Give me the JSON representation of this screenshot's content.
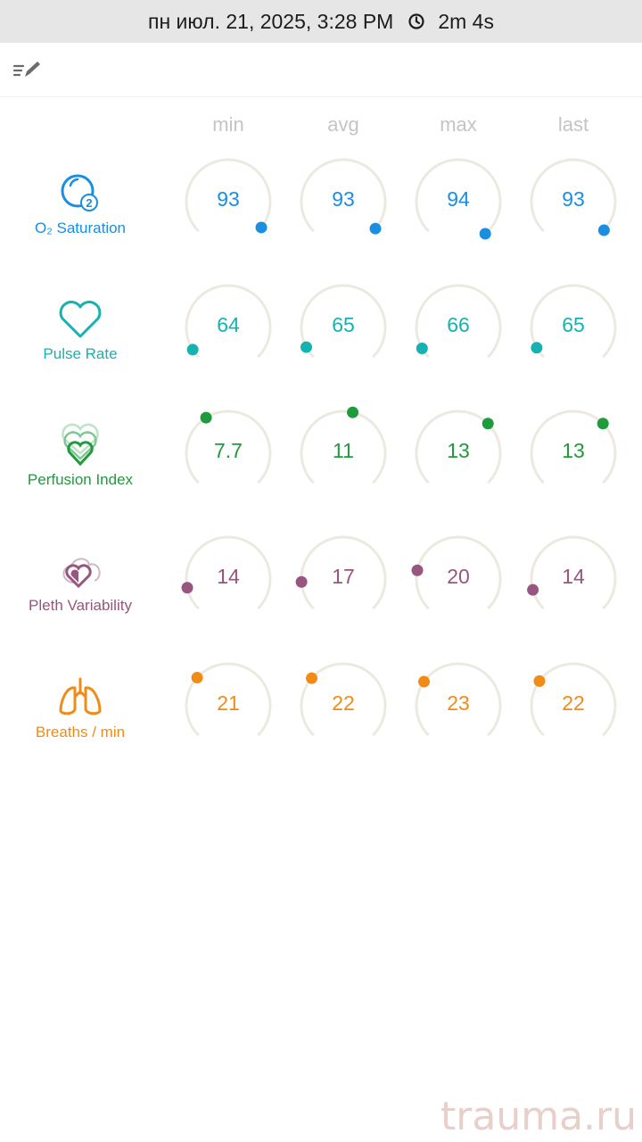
{
  "status": {
    "datetime": "пн июл. 21, 2025, 3:28 PM",
    "duration": "2m 4s"
  },
  "columns": [
    "min",
    "avg",
    "max",
    "last"
  ],
  "rows": [
    {
      "label": "O₂ Saturation",
      "color": "#1a8ee0",
      "icon": "o2-saturation-icon",
      "values": [
        "93",
        "93",
        "94",
        "93"
      ],
      "dot_angles": [
        128,
        130,
        140,
        133
      ]
    },
    {
      "label": "Pulse Rate",
      "color": "#15b2b2",
      "icon": "heart-icon",
      "values": [
        "64",
        "65",
        "66",
        "65"
      ],
      "dot_angles": [
        -122,
        -118,
        -120,
        -119
      ]
    },
    {
      "label": "Perfusion Index",
      "color": "#1f9a3c",
      "icon": "perfusion-heart-icon",
      "values": [
        "7.7",
        "11",
        "13",
        "13"
      ],
      "dot_angles": [
        -32,
        13,
        45,
        45
      ]
    },
    {
      "label": "Pleth Variability",
      "color": "#97557f",
      "icon": "pleth-heart-icon",
      "values": [
        "14",
        "17",
        "20",
        "14"
      ],
      "dot_angles": [
        -102,
        -94,
        -78,
        -105
      ]
    },
    {
      "label": "Breaths / min",
      "color": "#f28b16",
      "icon": "lungs-icon",
      "values": [
        "21",
        "22",
        "23",
        "22"
      ],
      "dot_angles": [
        -48,
        -49,
        -55,
        -54
      ]
    }
  ],
  "watermark": "trauma.ru"
}
